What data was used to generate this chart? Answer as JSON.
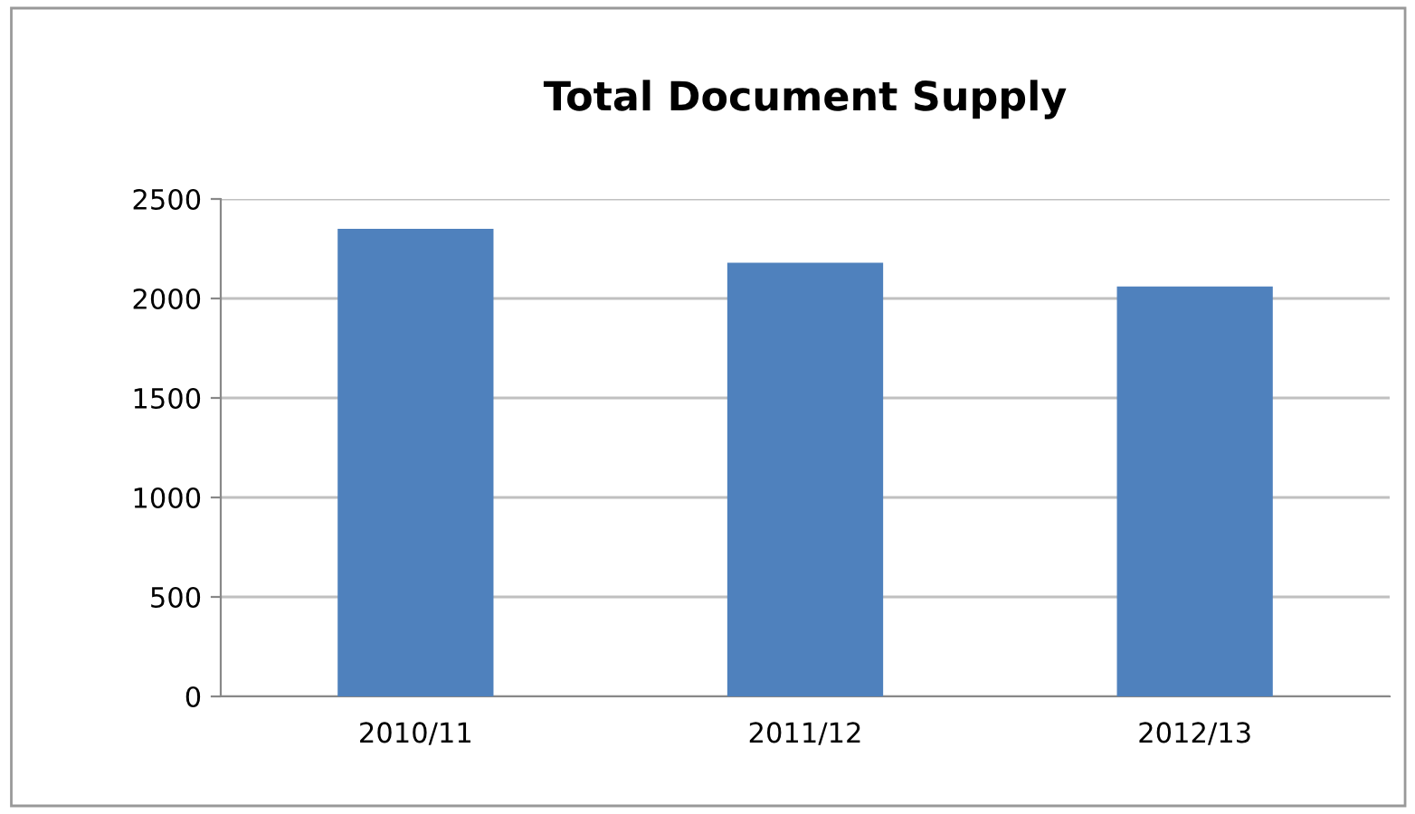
{
  "chart_data": {
    "type": "bar",
    "title": "Total Document Supply",
    "categories": [
      "2010/11",
      "2011/12",
      "2012/13"
    ],
    "values": [
      2350,
      2180,
      2060
    ],
    "color": "#4f81bd",
    "ylim": [
      0,
      2500
    ],
    "yticks": [
      0,
      500,
      1000,
      1500,
      2000,
      2500
    ],
    "grid": "y",
    "legend": false
  }
}
